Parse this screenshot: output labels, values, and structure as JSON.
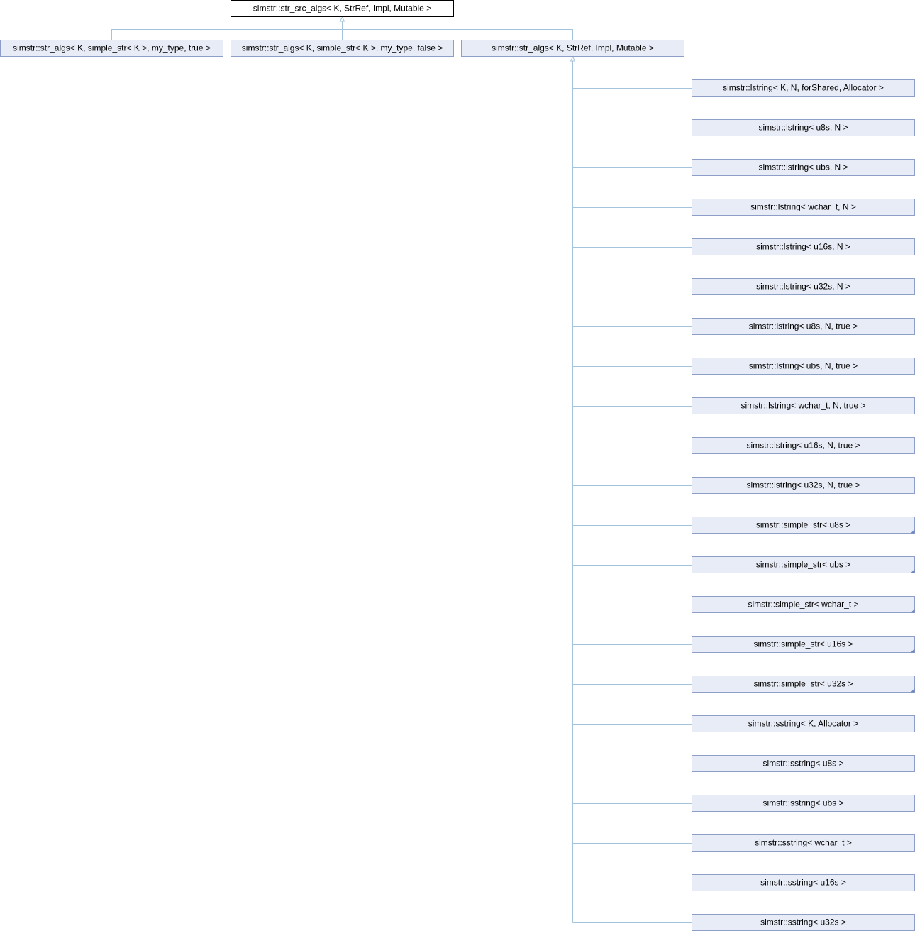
{
  "root": {
    "label": "simstr::str_src_algs< K, StrRef, Impl, Mutable >"
  },
  "children": [
    {
      "label": "simstr::str_algs< K, simple_str< K >, my_type, true >"
    },
    {
      "label": "simstr::str_algs< K, simple_str< K >, my_type, false >"
    },
    {
      "label": "simstr::str_algs< K, StrRef, Impl, Mutable >"
    }
  ],
  "derived": [
    {
      "label": "simstr::lstring< K, N, forShared, Allocator >"
    },
    {
      "label": "simstr::lstring< u8s, N >"
    },
    {
      "label": "simstr::lstring< ubs, N >"
    },
    {
      "label": "simstr::lstring< wchar_t, N >"
    },
    {
      "label": "simstr::lstring< u16s, N >"
    },
    {
      "label": "simstr::lstring< u32s, N >"
    },
    {
      "label": "simstr::lstring< u8s, N, true >"
    },
    {
      "label": "simstr::lstring< ubs, N, true >"
    },
    {
      "label": "simstr::lstring< wchar_t, N, true >"
    },
    {
      "label": "simstr::lstring< u16s, N, true >"
    },
    {
      "label": "simstr::lstring< u32s, N, true >"
    },
    {
      "label": "simstr::simple_str< u8s >",
      "has_more": true
    },
    {
      "label": "simstr::simple_str< ubs >",
      "has_more": true
    },
    {
      "label": "simstr::simple_str< wchar_t >",
      "has_more": true
    },
    {
      "label": "simstr::simple_str< u16s >",
      "has_more": true
    },
    {
      "label": "simstr::simple_str< u32s >",
      "has_more": true
    },
    {
      "label": "simstr::sstring< K, Allocator >"
    },
    {
      "label": "simstr::sstring< u8s >"
    },
    {
      "label": "simstr::sstring< ubs >"
    },
    {
      "label": "simstr::sstring< wchar_t >"
    },
    {
      "label": "simstr::sstring< u16s >"
    },
    {
      "label": "simstr::sstring< u32s >"
    }
  ]
}
